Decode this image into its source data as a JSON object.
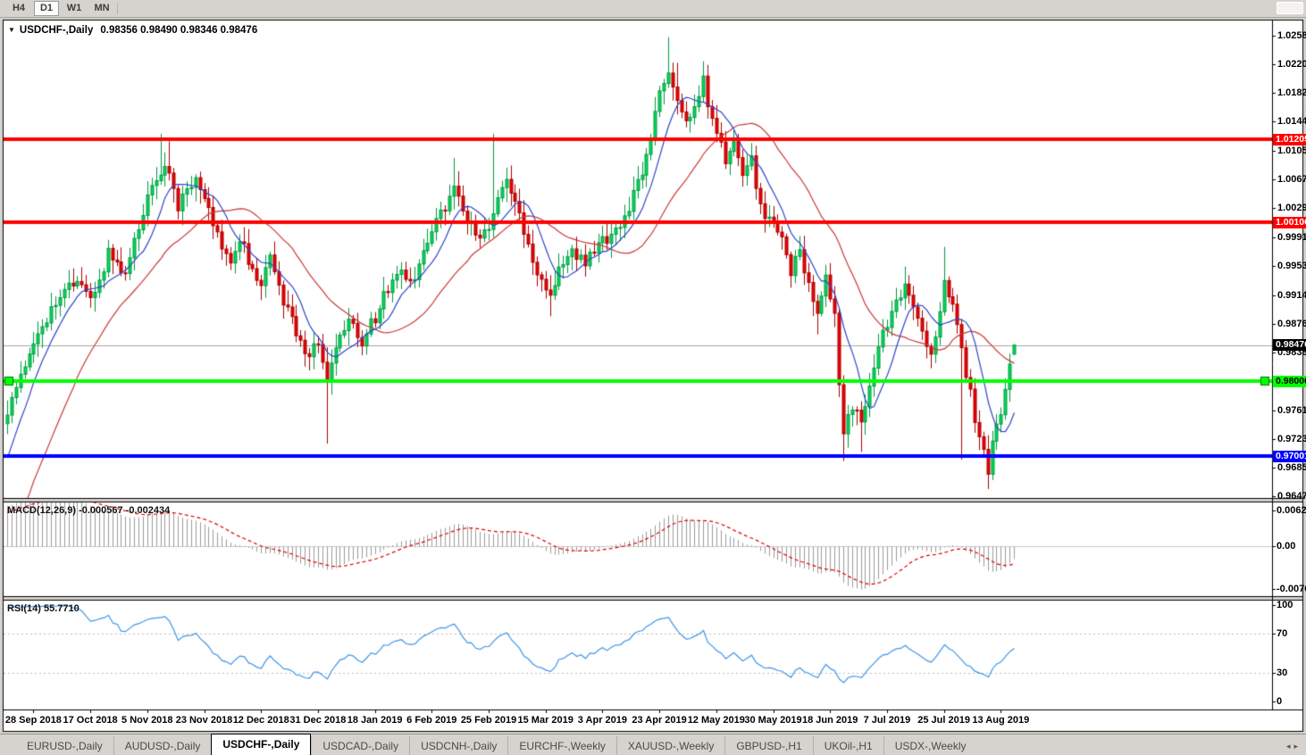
{
  "toolbar": {
    "timeframes": [
      {
        "label": "H4",
        "active": false
      },
      {
        "label": "D1",
        "active": true
      },
      {
        "label": "W1",
        "active": false
      },
      {
        "label": "MN",
        "active": false
      }
    ]
  },
  "title": {
    "dropdown_icon": "▼",
    "symbol": "USDCHF-,Daily",
    "ohlc": "0.98356 0.98490 0.98346 0.98476"
  },
  "price_axis": {
    "labels": [
      "1.02580",
      "1.02200",
      "1.01820",
      "1.01440",
      "1.01050",
      "1.00670",
      "1.00290",
      "0.99910",
      "0.99530",
      "0.99140",
      "0.98760",
      "0.98380",
      "0.97610",
      "0.97230",
      "0.96850",
      "0.96470"
    ],
    "badges": [
      {
        "value": "1.01205",
        "bg": "#ff0000",
        "fg": "#ffffff"
      },
      {
        "value": "1.00106",
        "bg": "#ff0000",
        "fg": "#ffffff"
      },
      {
        "value": "0.98476",
        "bg": "#000000",
        "fg": "#ffffff"
      },
      {
        "value": "0.98000",
        "bg": "#00ff00",
        "fg": "#000000"
      },
      {
        "value": "0.97001",
        "bg": "#0000ff",
        "fg": "#ffffff"
      }
    ]
  },
  "date_axis": [
    "28 Sep 2018",
    "17 Oct 2018",
    "5 Nov 2018",
    "23 Nov 2018",
    "12 Dec 2018",
    "31 Dec 2018",
    "18 Jan 2019",
    "6 Feb 2019",
    "25 Feb 2019",
    "15 Mar 2019",
    "3 Apr 2019",
    "23 Apr 2019",
    "12 May 2019",
    "30 May 2019",
    "18 Jun 2019",
    "7 Jul 2019",
    "25 Jul 2019",
    "13 Aug 2019"
  ],
  "macd_panel": {
    "label": "MACD(12,26,9)",
    "value_main": "-0.000567",
    "value_signal": "-0.002434",
    "fast": 12,
    "slow": 26,
    "signal": 9,
    "axis_labels": [
      "0.006286",
      "0.00",
      "-0.00762"
    ],
    "histogram_color": "#9b9b9b",
    "signal_color": "#e00000",
    "zero_line_color": "#c9c9c9"
  },
  "rsi_panel": {
    "label": "RSI(14)",
    "value": "55.7710",
    "period": 14,
    "axis_labels": [
      "100",
      "70",
      "30",
      "0"
    ],
    "levels": [
      70,
      30
    ],
    "line_color": "#3f96e8",
    "level_color": "#bcbcbc"
  },
  "tabs": {
    "items": [
      {
        "label": "EURUSD-,Daily",
        "active": false
      },
      {
        "label": "AUDUSD-,Daily",
        "active": false
      },
      {
        "label": "USDCHF-,Daily",
        "active": true
      },
      {
        "label": "USDCAD-,Daily",
        "active": false
      },
      {
        "label": "USDCNH-,Daily",
        "active": false
      },
      {
        "label": "EURCHF-,Weekly",
        "active": false
      },
      {
        "label": "XAUUSD-,Weekly",
        "active": false
      },
      {
        "label": "GBPUSD-,H1",
        "active": false
      },
      {
        "label": "UKOil-,H1",
        "active": false
      },
      {
        "label": "USDX-,Weekly",
        "active": false
      }
    ],
    "scroll_left_icon": "◂",
    "scroll_right_icon": "▸"
  },
  "chart_data": {
    "type": "candlestick",
    "symbol": "USDCHF",
    "timeframe": "Daily",
    "visible_bars": 231,
    "price_range_top": 1.0258,
    "price_range_bottom": 0.9647,
    "current_price": 0.98476,
    "hlines": [
      {
        "price": 1.01205,
        "color": "#ff0000",
        "width": 4,
        "markers": false
      },
      {
        "price": 1.00106,
        "color": "#ff0000",
        "width": 4,
        "markers": false
      },
      {
        "price": 0.98,
        "color": "#00ff00",
        "width": 4,
        "markers": true
      },
      {
        "price": 0.97001,
        "color": "#0000ff",
        "width": 4,
        "markers": false
      }
    ],
    "current_price_line_color": "#a8a8a8",
    "up_color": "#00dc58",
    "up_border": "#009940",
    "down_color": "#ee0000",
    "down_border": "#aa0000",
    "ma_fast": {
      "period": 8,
      "color": "#2f45cc"
    },
    "ma_slow": {
      "period": 25,
      "color": "#cc3838"
    },
    "close_anchors": [
      [
        0,
        0.9758
      ],
      [
        3,
        0.9802
      ],
      [
        7,
        0.9868
      ],
      [
        12,
        0.9912
      ],
      [
        16,
        0.9932
      ],
      [
        19,
        0.9906
      ],
      [
        23,
        0.9968
      ],
      [
        27,
        0.9944
      ],
      [
        30,
        1.0004
      ],
      [
        33,
        1.0062
      ],
      [
        36,
        1.0092
      ],
      [
        39,
        1.0034
      ],
      [
        43,
        1.0066
      ],
      [
        45,
        1.0042
      ],
      [
        48,
        0.9992
      ],
      [
        51,
        0.9958
      ],
      [
        53,
        0.9992
      ],
      [
        56,
        0.9942
      ],
      [
        58,
        0.9926
      ],
      [
        60,
        0.9962
      ],
      [
        63,
        0.9906
      ],
      [
        66,
        0.9862
      ],
      [
        69,
        0.9836
      ],
      [
        71,
        0.9856
      ],
      [
        73,
        0.9792
      ],
      [
        75,
        0.9846
      ],
      [
        78,
        0.9876
      ],
      [
        81,
        0.9852
      ],
      [
        84,
        0.9886
      ],
      [
        87,
        0.9922
      ],
      [
        90,
        0.9952
      ],
      [
        92,
        0.9926
      ],
      [
        95,
        0.9976
      ],
      [
        97,
        1.0002
      ],
      [
        100,
        1.0032
      ],
      [
        102,
        1.0056
      ],
      [
        105,
        1.0012
      ],
      [
        108,
        0.9988
      ],
      [
        110,
        1.0006
      ],
      [
        112,
        1.0042
      ],
      [
        114,
        1.0068
      ],
      [
        116,
        1.0036
      ],
      [
        118,
        1.0002
      ],
      [
        121,
        0.9946
      ],
      [
        124,
        0.9914
      ],
      [
        126,
        0.9952
      ],
      [
        129,
        0.9972
      ],
      [
        132,
        0.9956
      ],
      [
        136,
        0.9986
      ],
      [
        139,
        1.0002
      ],
      [
        142,
        1.0032
      ],
      [
        145,
        1.0076
      ],
      [
        147,
        1.0122
      ],
      [
        149,
        1.0176
      ],
      [
        151,
        1.0216
      ],
      [
        153,
        1.0176
      ],
      [
        155,
        1.0142
      ],
      [
        157,
        1.0172
      ],
      [
        159,
        1.0196
      ],
      [
        162,
        1.0126
      ],
      [
        164,
        1.0096
      ],
      [
        166,
        1.0116
      ],
      [
        168,
        1.0066
      ],
      [
        170,
        1.0092
      ],
      [
        172,
        1.0032
      ],
      [
        175,
        1.0006
      ],
      [
        177,
        0.9986
      ],
      [
        179,
        0.9946
      ],
      [
        181,
        0.9976
      ],
      [
        183,
        0.9922
      ],
      [
        185,
        0.9888
      ],
      [
        187,
        0.9936
      ],
      [
        189,
        0.9882
      ],
      [
        190,
        0.9802
      ],
      [
        191,
        0.9728
      ],
      [
        193,
        0.9768
      ],
      [
        195,
        0.974
      ],
      [
        197,
        0.9802
      ],
      [
        199,
        0.9846
      ],
      [
        201,
        0.9872
      ],
      [
        203,
        0.9906
      ],
      [
        205,
        0.993
      ],
      [
        207,
        0.9896
      ],
      [
        209,
        0.9862
      ],
      [
        211,
        0.9834
      ],
      [
        213,
        0.9886
      ],
      [
        214,
        0.993
      ],
      [
        216,
        0.9896
      ],
      [
        218,
        0.9842
      ],
      [
        220,
        0.9782
      ],
      [
        222,
        0.9726
      ],
      [
        224,
        0.9684
      ],
      [
        225,
        0.9722
      ],
      [
        226,
        0.9738
      ],
      [
        227,
        0.9762
      ],
      [
        228,
        0.9792
      ],
      [
        229,
        0.9826
      ],
      [
        230,
        0.98476
      ]
    ],
    "wick_spikes_high": [
      [
        35,
        1.0128
      ],
      [
        37,
        1.0118
      ],
      [
        102,
        1.0096
      ],
      [
        111,
        1.0128
      ],
      [
        151,
        1.0256
      ],
      [
        153,
        1.0222
      ],
      [
        159,
        1.0224
      ],
      [
        205,
        0.9952
      ],
      [
        214,
        0.9978
      ]
    ],
    "wick_spikes_low": [
      [
        73,
        0.9717
      ],
      [
        124,
        0.9886
      ],
      [
        185,
        0.9862
      ],
      [
        191,
        0.9694
      ],
      [
        195,
        0.9706
      ],
      [
        218,
        0.9696
      ],
      [
        224,
        0.9657
      ]
    ],
    "last_candle": {
      "open": 0.98356,
      "high": 0.9849,
      "low": 0.98346,
      "close": 0.98476
    },
    "warmup": {
      "bars": 40,
      "start_price": 0.94
    },
    "noise": 0.0009,
    "date_label_first_bar": 6,
    "date_label_step": 13
  }
}
